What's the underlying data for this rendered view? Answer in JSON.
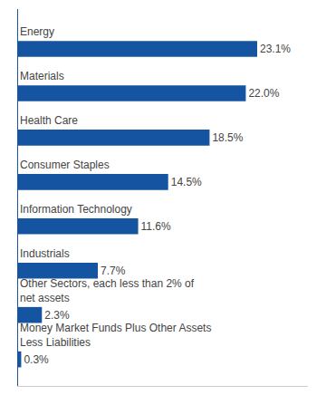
{
  "chart_data": {
    "type": "bar",
    "orientation": "horizontal",
    "categories": [
      "Energy",
      "Materials",
      "Health Care",
      "Consumer Staples",
      "Information Technology",
      "Industrials",
      "Other Sectors, each less than 2% of\nnet assets",
      "Money Market Funds Plus Other Assets\nLess Liabilities"
    ],
    "values": [
      23.1,
      22.0,
      18.5,
      14.5,
      11.6,
      7.7,
      2.3,
      0.3
    ],
    "value_labels": [
      "23.1%",
      "22.0%",
      "18.5%",
      "14.5%",
      "11.6%",
      "7.7%",
      "2.3%",
      "0.3%"
    ],
    "data_labels": true,
    "color": "#1554a0",
    "xlim": [
      0,
      28
    ],
    "grid": false,
    "tick_labels": false
  }
}
